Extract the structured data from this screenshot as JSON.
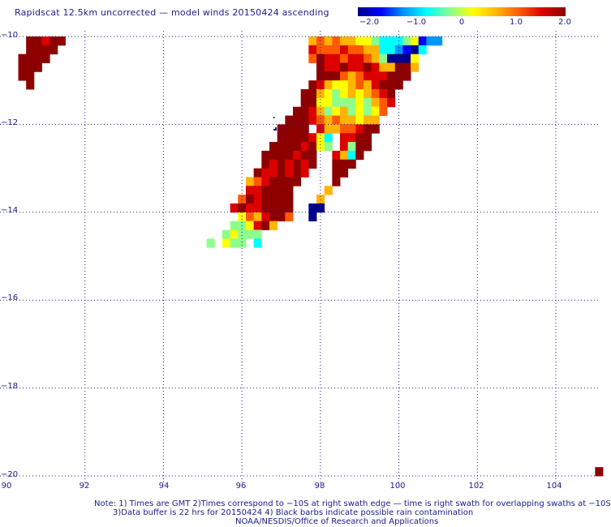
{
  "title": "Rapidscat 12.5km uncorrected — model winds 20150424 ascending",
  "colorbar": {
    "ticks": [
      "−2.0",
      "−1.0",
      "0",
      "1.0",
      "2.0"
    ],
    "range": [
      -2.0,
      2.0
    ]
  },
  "axes": {
    "lat_labels": [
      "−10",
      "−12",
      "−14",
      "−16",
      "−18",
      "−20"
    ],
    "lon_labels": [
      "90",
      "92",
      "94",
      "96",
      "98",
      "100",
      "102",
      "104"
    ],
    "lat_range": [
      -20,
      -10
    ],
    "lon_range": [
      90,
      105.2
    ],
    "grid": "dotted"
  },
  "notes": {
    "line1": "Note: 1) Times are GMT 2)Times correspond to −10S at right swath edge — time is right swath for overlapping swaths at −10S",
    "line2": "3)Data buffer is 22 hrs for 20150424 4) Black barbs indicate possible rain contamination",
    "line3": "NOAA/NESDIS/Office of Research and Applications"
  },
  "colors": {
    "text": "#1a1a8c",
    "grid": "#1a1a8c",
    "scale": [
      "#00008c",
      "#0000ff",
      "#0096ff",
      "#00ffff",
      "#8cff8c",
      "#ffff00",
      "#ffb400",
      "#ff5a00",
      "#dc0000",
      "#8c0000"
    ]
  },
  "chart_data": {
    "type": "heatmap",
    "value_label": "wind speed difference",
    "cell_size_deg": 0.2,
    "cells": [
      [
        90.6,
        -10.1,
        1.7
      ],
      [
        90.8,
        -10.1,
        1.8
      ],
      [
        91.0,
        -10.1,
        1.5
      ],
      [
        91.2,
        -10.1,
        1.6
      ],
      [
        91.4,
        -10.1,
        1.9
      ],
      [
        90.6,
        -10.3,
        1.7
      ],
      [
        90.8,
        -10.3,
        1.8
      ],
      [
        91.0,
        -10.3,
        1.6
      ],
      [
        91.2,
        -10.3,
        1.8
      ],
      [
        90.4,
        -10.5,
        1.8
      ],
      [
        90.6,
        -10.5,
        1.7
      ],
      [
        90.8,
        -10.5,
        1.9
      ],
      [
        91.0,
        -10.5,
        1.7
      ],
      [
        90.4,
        -10.7,
        1.9
      ],
      [
        90.6,
        -10.7,
        1.8
      ],
      [
        90.8,
        -10.7,
        1.9
      ],
      [
        90.4,
        -10.9,
        1.9
      ],
      [
        90.6,
        -10.9,
        2.0
      ],
      [
        90.6,
        -11.1,
        1.9
      ],
      [
        97.8,
        -10.1,
        0.7
      ],
      [
        98.0,
        -10.1,
        0.8
      ],
      [
        98.2,
        -10.1,
        0.6
      ],
      [
        98.4,
        -10.1,
        0.9
      ],
      [
        98.6,
        -10.1,
        0.7
      ],
      [
        98.8,
        -10.1,
        0.5
      ],
      [
        99.0,
        -10.1,
        0.3
      ],
      [
        99.2,
        -10.1,
        0.1
      ],
      [
        99.4,
        -10.1,
        -0.3
      ],
      [
        99.6,
        -10.1,
        -0.6
      ],
      [
        99.8,
        -10.1,
        -0.8
      ],
      [
        100.0,
        -10.1,
        -0.7
      ],
      [
        100.2,
        -10.1,
        -0.4
      ],
      [
        100.4,
        -10.1,
        0.1
      ],
      [
        100.6,
        -10.1,
        -1.4
      ],
      [
        100.8,
        -10.1,
        -1.0
      ],
      [
        101.0,
        -10.1,
        -1.2
      ],
      [
        97.8,
        -10.3,
        1.2
      ],
      [
        98.0,
        -10.3,
        0.9
      ],
      [
        98.2,
        -10.3,
        1.1
      ],
      [
        98.4,
        -10.3,
        0.8
      ],
      [
        98.6,
        -10.3,
        1.3
      ],
      [
        98.8,
        -10.3,
        0.9
      ],
      [
        99.0,
        -10.3,
        1.1
      ],
      [
        99.2,
        -10.3,
        0.7
      ],
      [
        99.4,
        -10.3,
        0.4
      ],
      [
        99.6,
        -10.3,
        -0.5
      ],
      [
        99.8,
        -10.3,
        -0.7
      ],
      [
        100.0,
        -10.3,
        -0.9
      ],
      [
        100.2,
        -10.3,
        -1.5
      ],
      [
        100.4,
        -10.3,
        -1.7
      ],
      [
        100.6,
        -10.3,
        -0.6
      ],
      [
        97.8,
        -10.5,
        0.9
      ],
      [
        98.0,
        -10.5,
        1.6
      ],
      [
        98.2,
        -10.5,
        1.2
      ],
      [
        98.4,
        -10.5,
        1.4
      ],
      [
        98.6,
        -10.5,
        0.9
      ],
      [
        98.8,
        -10.5,
        1.2
      ],
      [
        99.0,
        -10.5,
        1.5
      ],
      [
        99.2,
        -10.5,
        1.1
      ],
      [
        99.4,
        -10.5,
        0.6
      ],
      [
        99.6,
        -10.5,
        -0.4
      ],
      [
        99.8,
        -10.5,
        -1.6
      ],
      [
        100.0,
        -10.5,
        -1.8
      ],
      [
        100.2,
        -10.5,
        -1.7
      ],
      [
        100.4,
        -10.5,
        0.2
      ],
      [
        98.0,
        -10.7,
        1.8
      ],
      [
        98.2,
        -10.7,
        1.5
      ],
      [
        98.4,
        -10.7,
        1.3
      ],
      [
        98.6,
        -10.7,
        1.6
      ],
      [
        98.8,
        -10.7,
        1.2
      ],
      [
        99.0,
        -10.7,
        1.4
      ],
      [
        99.2,
        -10.7,
        1.6
      ],
      [
        99.4,
        -10.7,
        1.3
      ],
      [
        99.6,
        -10.7,
        0.6
      ],
      [
        99.8,
        -10.7,
        0.5
      ],
      [
        100.0,
        -10.7,
        1.9
      ],
      [
        100.2,
        -10.7,
        1.7
      ],
      [
        100.4,
        -10.7,
        0.4
      ],
      [
        98.0,
        -10.9,
        1.9
      ],
      [
        98.2,
        -10.9,
        1.6
      ],
      [
        98.4,
        -10.9,
        1.7
      ],
      [
        98.6,
        -10.9,
        0.9
      ],
      [
        98.8,
        -10.9,
        0.5
      ],
      [
        99.0,
        -10.9,
        0.8
      ],
      [
        99.2,
        -10.9,
        1.2
      ],
      [
        99.4,
        -10.9,
        1.4
      ],
      [
        99.6,
        -10.9,
        1.5
      ],
      [
        99.8,
        -10.9,
        1.9
      ],
      [
        100.0,
        -10.9,
        2.0
      ],
      [
        100.2,
        -10.9,
        1.8
      ],
      [
        97.8,
        -11.1,
        1.7
      ],
      [
        98.0,
        -11.1,
        1.5
      ],
      [
        98.2,
        -11.1,
        0.6
      ],
      [
        98.4,
        -11.1,
        0.3
      ],
      [
        98.6,
        -11.1,
        0.2
      ],
      [
        98.8,
        -11.1,
        0.6
      ],
      [
        99.0,
        -11.1,
        0.9
      ],
      [
        99.2,
        -11.1,
        0.5
      ],
      [
        99.4,
        -11.1,
        1.2
      ],
      [
        99.6,
        -11.1,
        1.7
      ],
      [
        99.8,
        -11.1,
        1.9
      ],
      [
        100.0,
        -11.1,
        1.9
      ],
      [
        97.6,
        -11.3,
        1.9
      ],
      [
        97.8,
        -11.3,
        1.6
      ],
      [
        98.0,
        -11.3,
        0.4
      ],
      [
        98.2,
        -11.3,
        0.2
      ],
      [
        98.4,
        -11.3,
        -0.3
      ],
      [
        98.6,
        -11.3,
        0.1
      ],
      [
        98.8,
        -11.3,
        0.5
      ],
      [
        99.0,
        -11.3,
        0.2
      ],
      [
        99.2,
        -11.3,
        0.6
      ],
      [
        99.4,
        -11.3,
        0.8
      ],
      [
        99.6,
        -11.3,
        1.4
      ],
      [
        99.8,
        -11.3,
        1.9
      ],
      [
        97.6,
        -11.5,
        1.8
      ],
      [
        97.8,
        -11.5,
        1.9
      ],
      [
        98.0,
        -11.5,
        0.3
      ],
      [
        98.2,
        -11.5,
        0.0
      ],
      [
        98.4,
        -11.5,
        -0.2
      ],
      [
        98.6,
        -11.5,
        -0.4
      ],
      [
        98.8,
        -11.5,
        -0.1
      ],
      [
        99.0,
        -11.5,
        0.3
      ],
      [
        99.2,
        -11.5,
        -0.3
      ],
      [
        99.4,
        -11.5,
        0.4
      ],
      [
        99.6,
        -11.5,
        1.1
      ],
      [
        99.8,
        -11.5,
        1.5
      ],
      [
        97.4,
        -11.7,
        1.9
      ],
      [
        97.6,
        -11.7,
        2.0
      ],
      [
        97.8,
        -11.7,
        1.2
      ],
      [
        98.0,
        -11.7,
        0.5
      ],
      [
        98.2,
        -11.7,
        -0.1
      ],
      [
        98.4,
        -11.7,
        0.2
      ],
      [
        98.6,
        -11.7,
        0.6
      ],
      [
        98.8,
        -11.7,
        -0.3
      ],
      [
        99.0,
        -11.7,
        0.0
      ],
      [
        99.2,
        -11.7,
        -0.4
      ],
      [
        99.4,
        -11.7,
        0.3
      ],
      [
        99.6,
        -11.7,
        0.9
      ],
      [
        97.2,
        -11.9,
        1.9
      ],
      [
        97.4,
        -11.9,
        2.0
      ],
      [
        97.6,
        -11.9,
        1.8
      ],
      [
        97.8,
        -11.9,
        1.4
      ],
      [
        98.0,
        -11.9,
        0.9
      ],
      [
        98.2,
        -11.9,
        0.5
      ],
      [
        98.4,
        -11.9,
        0.8
      ],
      [
        98.6,
        -11.9,
        0.4
      ],
      [
        98.8,
        -11.9,
        0.6
      ],
      [
        99.0,
        -11.9,
        0.3
      ],
      [
        99.2,
        -11.9,
        0.5
      ],
      [
        99.4,
        -11.9,
        0.7
      ],
      [
        97.0,
        -12.1,
        1.9
      ],
      [
        97.2,
        -12.1,
        2.0
      ],
      [
        97.4,
        -12.1,
        1.9
      ],
      [
        97.6,
        -12.1,
        1.9
      ],
      [
        98.0,
        -12.1,
        1.2
      ],
      [
        98.2,
        -12.1,
        0.4
      ],
      [
        98.4,
        -12.1,
        0.7
      ],
      [
        98.6,
        -12.1,
        0.9
      ],
      [
        98.8,
        -12.1,
        0.8
      ],
      [
        99.0,
        -12.1,
        1.2
      ],
      [
        99.2,
        -12.1,
        1.6
      ],
      [
        99.4,
        -12.1,
        1.9
      ],
      [
        97.0,
        -12.3,
        1.9
      ],
      [
        97.2,
        -12.3,
        1.8
      ],
      [
        97.4,
        -12.3,
        1.9
      ],
      [
        97.6,
        -12.3,
        1.7
      ],
      [
        97.8,
        -12.3,
        1.3
      ],
      [
        98.0,
        -12.3,
        0.3
      ],
      [
        98.2,
        -12.3,
        -0.5
      ],
      [
        98.6,
        -12.3,
        1.4
      ],
      [
        98.8,
        -12.3,
        1.2
      ],
      [
        99.0,
        -12.3,
        1.9
      ],
      [
        99.2,
        -12.3,
        1.9
      ],
      [
        96.8,
        -12.5,
        1.8
      ],
      [
        97.0,
        -12.5,
        2.0
      ],
      [
        97.2,
        -12.5,
        1.9
      ],
      [
        97.4,
        -12.5,
        1.7
      ],
      [
        97.6,
        -12.5,
        1.4
      ],
      [
        97.8,
        -12.5,
        1.6
      ],
      [
        98.0,
        -12.5,
        0.0
      ],
      [
        98.2,
        -12.5,
        -0.4
      ],
      [
        98.6,
        -12.5,
        1.3
      ],
      [
        98.8,
        -12.5,
        -0.3
      ],
      [
        99.0,
        -12.5,
        1.9
      ],
      [
        99.2,
        -12.5,
        1.8
      ],
      [
        96.6,
        -12.7,
        1.9
      ],
      [
        96.8,
        -12.7,
        1.7
      ],
      [
        97.0,
        -12.7,
        1.6
      ],
      [
        97.2,
        -12.7,
        1.8
      ],
      [
        97.4,
        -12.7,
        1.5
      ],
      [
        97.6,
        -12.7,
        1.8
      ],
      [
        97.8,
        -12.7,
        1.9
      ],
      [
        98.4,
        -12.7,
        1.5
      ],
      [
        98.6,
        -12.7,
        0.4
      ],
      [
        98.8,
        -12.7,
        -0.8
      ],
      [
        99.0,
        -12.7,
        1.9
      ],
      [
        96.6,
        -12.9,
        1.8
      ],
      [
        96.8,
        -12.9,
        1.4
      ],
      [
        97.0,
        -12.9,
        1.6
      ],
      [
        97.2,
        -12.9,
        1.3
      ],
      [
        97.4,
        -12.9,
        1.7
      ],
      [
        97.6,
        -12.9,
        1.5
      ],
      [
        97.8,
        -12.9,
        1.8
      ],
      [
        98.4,
        -12.9,
        1.9
      ],
      [
        98.6,
        -12.9,
        1.8
      ],
      [
        98.8,
        -12.9,
        1.9
      ],
      [
        96.4,
        -13.1,
        1.9
      ],
      [
        96.6,
        -13.1,
        1.2
      ],
      [
        96.8,
        -13.1,
        1.5
      ],
      [
        97.0,
        -13.1,
        1.7
      ],
      [
        97.2,
        -13.1,
        1.4
      ],
      [
        97.4,
        -13.1,
        1.6
      ],
      [
        97.6,
        -13.1,
        1.2
      ],
      [
        98.4,
        -13.1,
        1.9
      ],
      [
        98.6,
        -13.1,
        2.0
      ],
      [
        96.2,
        -13.3,
        0.6
      ],
      [
        96.4,
        -13.3,
        0.9
      ],
      [
        96.6,
        -13.3,
        1.5
      ],
      [
        96.8,
        -13.3,
        1.9
      ],
      [
        97.0,
        -13.3,
        1.7
      ],
      [
        97.2,
        -13.3,
        1.9
      ],
      [
        97.4,
        -13.3,
        1.8
      ],
      [
        98.4,
        -13.3,
        1.6
      ],
      [
        96.2,
        -13.5,
        1.2
      ],
      [
        96.4,
        -13.5,
        1.4
      ],
      [
        96.6,
        -13.5,
        1.7
      ],
      [
        96.8,
        -13.5,
        2.0
      ],
      [
        97.0,
        -13.5,
        1.9
      ],
      [
        97.2,
        -13.5,
        1.9
      ],
      [
        98.2,
        -13.5,
        0.6
      ],
      [
        96.0,
        -13.7,
        1.0
      ],
      [
        96.2,
        -13.7,
        1.6
      ],
      [
        96.4,
        -13.7,
        1.3
      ],
      [
        96.6,
        -13.7,
        1.8
      ],
      [
        96.8,
        -13.7,
        2.0
      ],
      [
        97.0,
        -13.7,
        2.0
      ],
      [
        97.2,
        -13.7,
        1.9
      ],
      [
        98.0,
        -13.7,
        0.4
      ],
      [
        95.8,
        -13.9,
        1.5
      ],
      [
        96.0,
        -13.9,
        1.6
      ],
      [
        96.2,
        -13.9,
        1.3
      ],
      [
        96.4,
        -13.9,
        1.5
      ],
      [
        96.6,
        -13.9,
        1.8
      ],
      [
        96.8,
        -13.9,
        1.9
      ],
      [
        97.0,
        -13.9,
        2.0
      ],
      [
        97.2,
        -13.9,
        1.9
      ],
      [
        97.8,
        -13.9,
        -1.7
      ],
      [
        98.0,
        -13.9,
        -1.6
      ],
      [
        96.0,
        -14.1,
        0.0
      ],
      [
        96.2,
        -14.1,
        0.8
      ],
      [
        96.4,
        -14.1,
        0.6
      ],
      [
        96.6,
        -14.1,
        1.4
      ],
      [
        96.8,
        -14.1,
        2.0
      ],
      [
        97.0,
        -14.1,
        1.9
      ],
      [
        97.2,
        -14.1,
        0.8
      ],
      [
        97.8,
        -14.1,
        -1.9
      ],
      [
        95.8,
        -14.3,
        -0.3
      ],
      [
        96.0,
        -14.3,
        -0.2
      ],
      [
        96.2,
        -14.3,
        0.2
      ],
      [
        96.4,
        -14.3,
        1.3
      ],
      [
        96.6,
        -14.3,
        1.7
      ],
      [
        96.8,
        -14.3,
        0.6
      ],
      [
        95.6,
        -14.5,
        -0.2
      ],
      [
        95.8,
        -14.5,
        0.1
      ],
      [
        96.0,
        -14.5,
        -0.3
      ],
      [
        96.2,
        -14.5,
        -0.1
      ],
      [
        96.4,
        -14.5,
        -0.4
      ],
      [
        95.2,
        -14.7,
        -0.1
      ],
      [
        95.6,
        -14.7,
        0.0
      ],
      [
        95.8,
        -14.7,
        -0.2
      ],
      [
        96.0,
        -14.7,
        -0.1
      ],
      [
        96.4,
        -14.7,
        -0.5
      ],
      [
        105.1,
        -19.9,
        1.6
      ]
    ]
  }
}
